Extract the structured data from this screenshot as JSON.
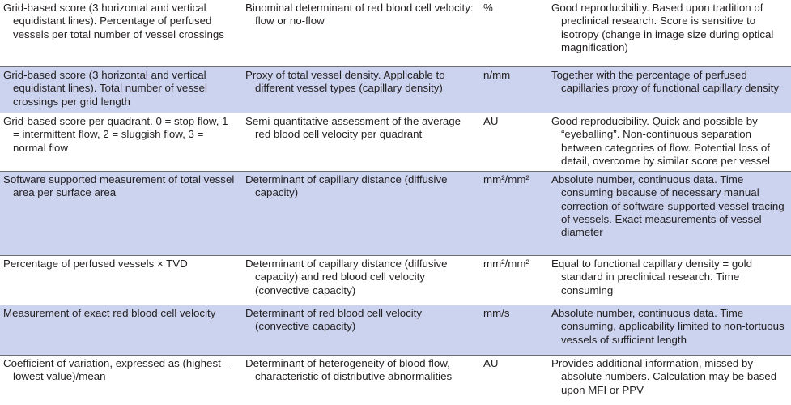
{
  "rows": [
    {
      "description": "Grid-based score (3 horizontal and vertical equidistant lines). Percentage of perfused vessels per total number of vessel crossings",
      "definition": "Binominal determinant of red blood cell velocity: flow or no-flow",
      "unit": "%",
      "comment": "Good reproducibility. Based upon tradition of preclinical research. Score is sensitive to isotropy (change in image size during optical magnification)",
      "shaded": false
    },
    {
      "description": "Grid-based score (3 horizontal and vertical equidistant lines). Total number of vessel crossings per grid length",
      "definition": "Proxy of total vessel density. Applicable to different vessel types (capillary density)",
      "unit": "n/mm",
      "comment": "Together with the percentage of perfused capillaries proxy of functional capillary density",
      "shaded": true
    },
    {
      "description": "Grid-based score per quadrant. 0 = stop flow, 1 = intermittent flow, 2 = sluggish flow, 3 = normal flow",
      "definition": "Semi-quantitative assessment of the average red blood cell velocity per quadrant",
      "unit": "AU",
      "comment": "Good reproducibility. Quick and possible by “eyeballing”. Non-continuous separation between categories of flow. Potential loss of detail, overcome by similar score per vessel",
      "shaded": false
    },
    {
      "description": "Software supported measurement of total vessel area per surface area",
      "definition": "Determinant of capillary distance (diffusive capacity)",
      "unit": "mm²/mm²",
      "comment": "Absolute number, continuous data. Time consuming because of necessary manual correction of software-supported vessel tracing of vessels. Exact measurements of vessel diameter",
      "shaded": true
    },
    {
      "description": "Percentage of perfused vessels × TVD",
      "definition": "Determinant of capillary distance (diffusive capacity) and red blood cell velocity (convective capacity)",
      "unit": "mm²/mm²",
      "comment": "Equal to functional capillary density = gold standard in preclinical research. Time consuming",
      "shaded": false
    },
    {
      "description": "Measurement of exact red blood cell velocity",
      "definition": "Determinant of red blood cell velocity (convective capacity)",
      "unit": "mm/s",
      "comment": "Absolute number, continuous data. Time consuming, applicability limited to non-tortuous vessels of sufficient length",
      "shaded": true
    },
    {
      "description": "Coefficient of variation, expressed as (highest – lowest value)/mean",
      "definition": "Determinant of heterogeneity of blood flow, characteristic of distributive abnormalities",
      "unit": "AU",
      "comment": "Provides additional information, missed by absolute numbers. Calculation may be based upon MFI or PPV",
      "shaded": false
    }
  ]
}
